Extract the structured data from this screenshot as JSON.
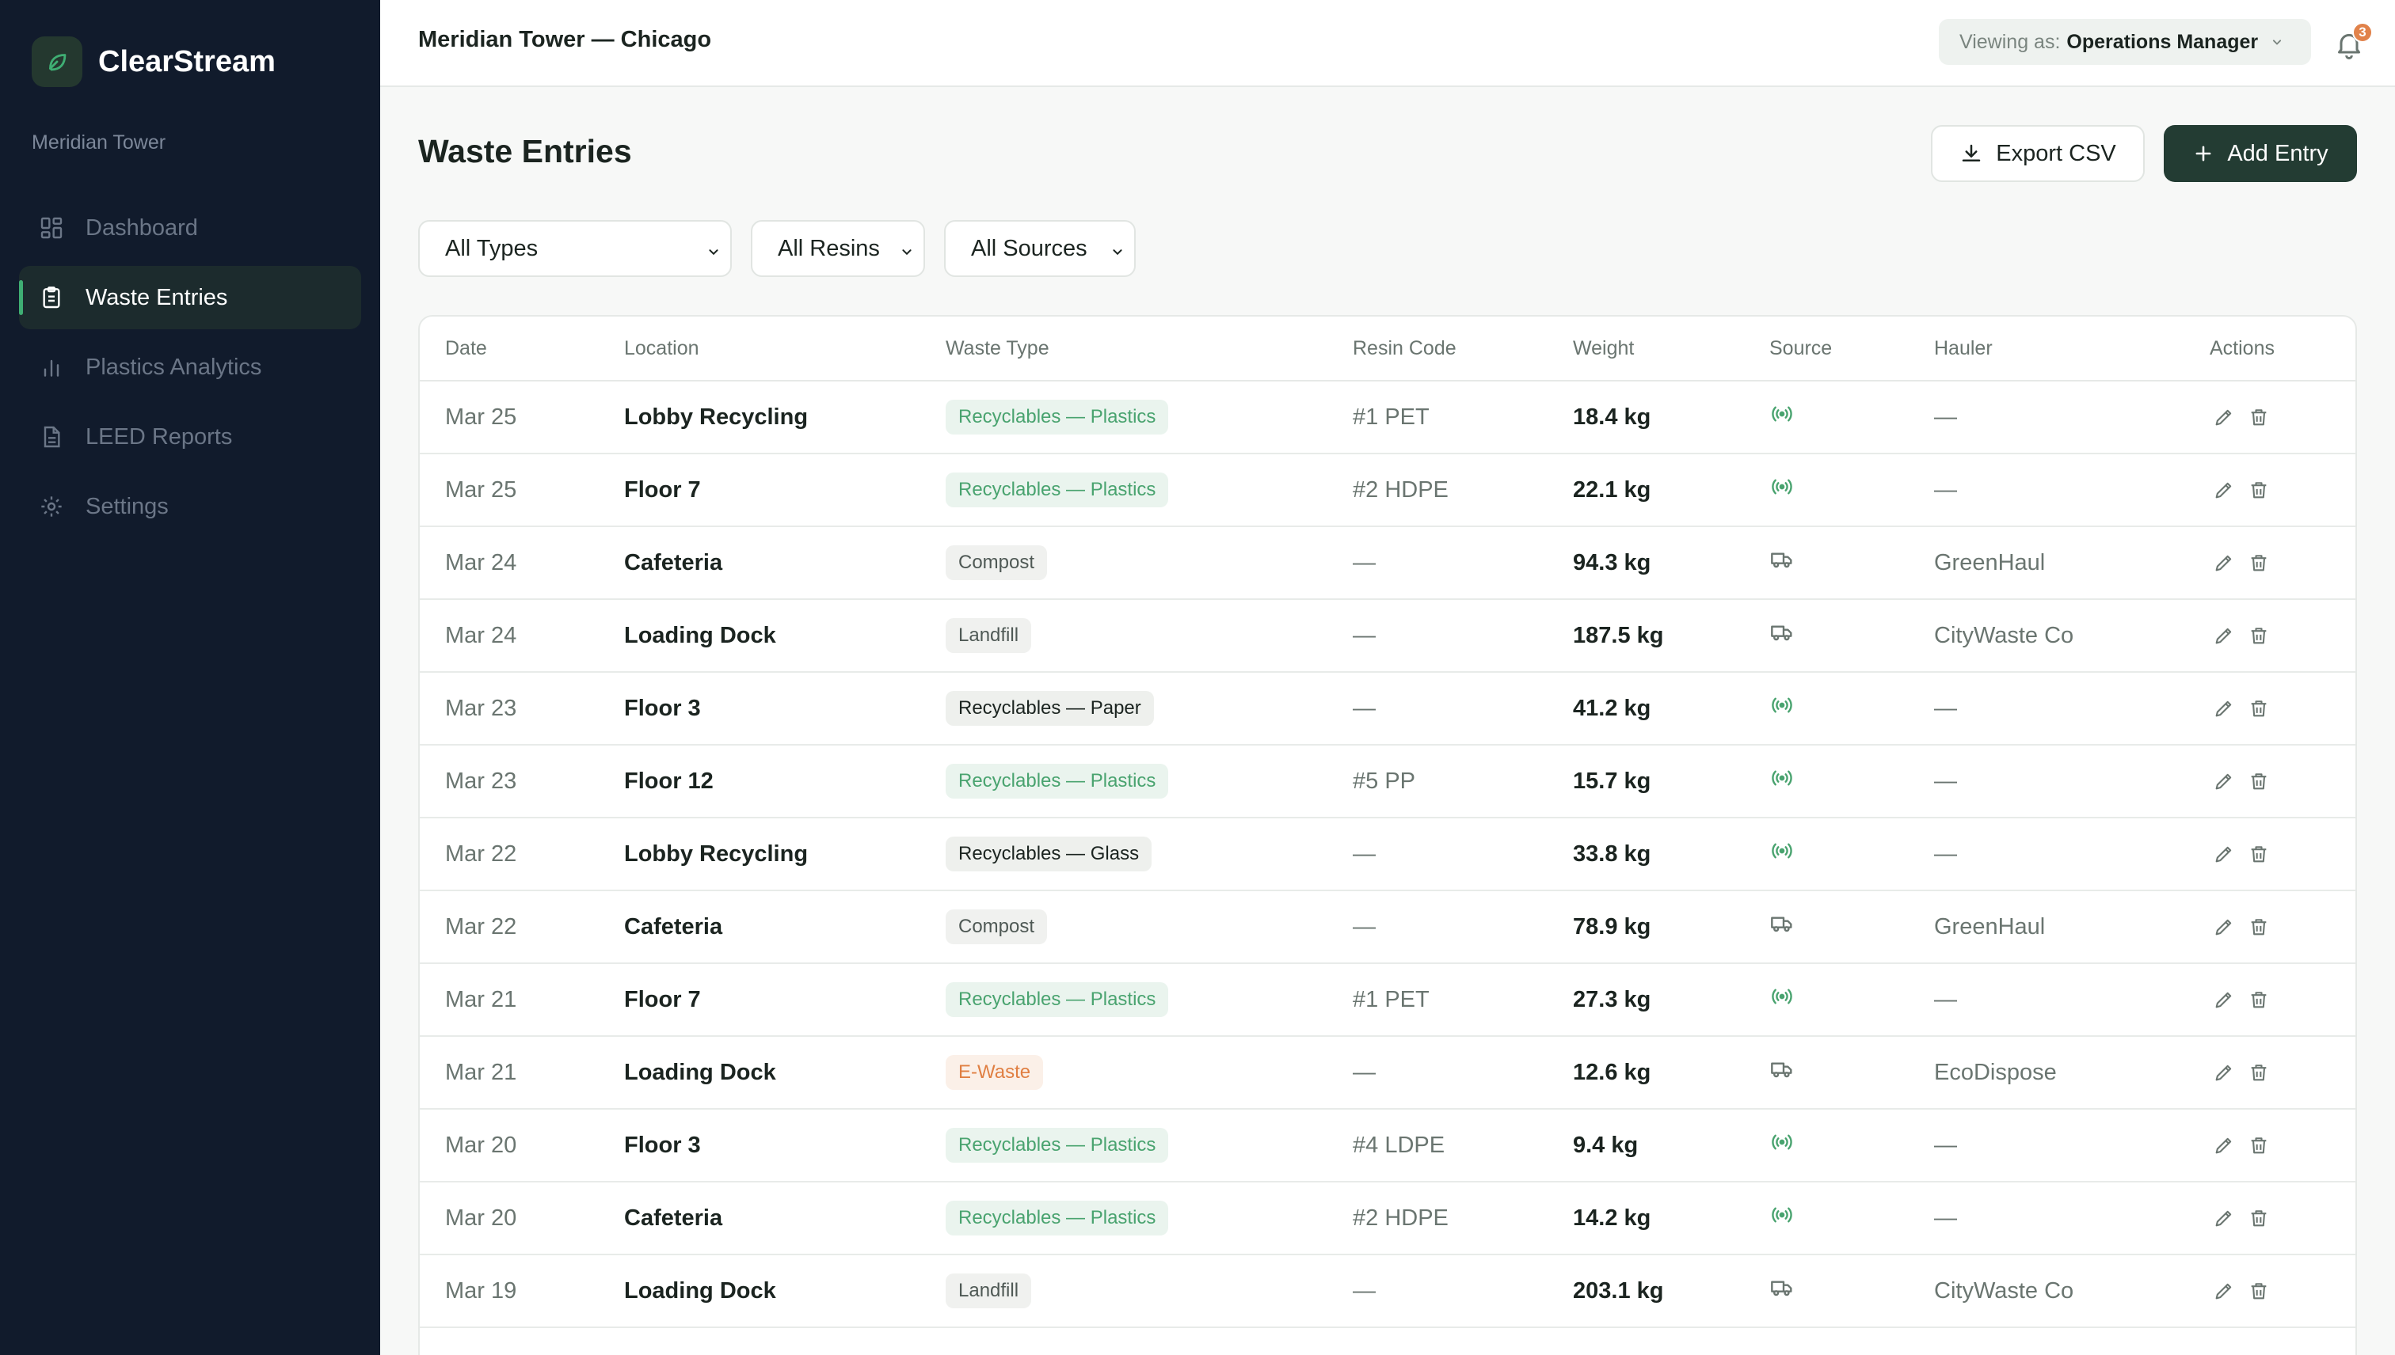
{
  "app": {
    "name": "ClearStream",
    "workspace": "Meridian Tower"
  },
  "sidebar": {
    "items": [
      {
        "label": "Dashboard",
        "icon": "grid-icon",
        "active": false
      },
      {
        "label": "Waste Entries",
        "icon": "clipboard-icon",
        "active": true
      },
      {
        "label": "Plastics Analytics",
        "icon": "bar-chart-icon",
        "active": false
      },
      {
        "label": "LEED Reports",
        "icon": "document-icon",
        "active": false
      },
      {
        "label": "Settings",
        "icon": "gear-icon",
        "active": false
      }
    ]
  },
  "topbar": {
    "title": "Meridian Tower — Chicago",
    "viewing_label": "Viewing as:",
    "viewing_value": "Operations Manager",
    "notification_count": "3"
  },
  "main": {
    "title": "Waste Entries",
    "export_label": "Export CSV",
    "add_label": "Add Entry",
    "filters": {
      "type": "All Types",
      "resin": "All Resins",
      "source": "All Sources"
    }
  },
  "table": {
    "columns": [
      "Date",
      "Location",
      "Waste Type",
      "Resin Code",
      "Weight",
      "Source",
      "Hauler",
      "Actions"
    ],
    "rows": [
      {
        "date": "Mar 25",
        "location": "Lobby Recycling",
        "type": "Recyclables — Plastics",
        "type_style": "plastics",
        "resin": "#1 PET",
        "weight": "18.4 kg",
        "source": "sensor",
        "hauler": "—"
      },
      {
        "date": "Mar 25",
        "location": "Floor 7",
        "type": "Recyclables — Plastics",
        "type_style": "plastics",
        "resin": "#2 HDPE",
        "weight": "22.1 kg",
        "source": "sensor",
        "hauler": "—"
      },
      {
        "date": "Mar 24",
        "location": "Cafeteria",
        "type": "Compost",
        "type_style": "compost",
        "resin": "—",
        "weight": "94.3 kg",
        "source": "truck",
        "hauler": "GreenHaul"
      },
      {
        "date": "Mar 24",
        "location": "Loading Dock",
        "type": "Landfill",
        "type_style": "landfill",
        "resin": "—",
        "weight": "187.5 kg",
        "source": "truck",
        "hauler": "CityWaste Co"
      },
      {
        "date": "Mar 23",
        "location": "Floor 3",
        "type": "Recyclables — Paper",
        "type_style": "paper",
        "resin": "—",
        "weight": "41.2 kg",
        "source": "sensor",
        "hauler": "—"
      },
      {
        "date": "Mar 23",
        "location": "Floor 12",
        "type": "Recyclables — Plastics",
        "type_style": "plastics",
        "resin": "#5 PP",
        "weight": "15.7 kg",
        "source": "sensor",
        "hauler": "—"
      },
      {
        "date": "Mar 22",
        "location": "Lobby Recycling",
        "type": "Recyclables — Glass",
        "type_style": "glass",
        "resin": "—",
        "weight": "33.8 kg",
        "source": "sensor",
        "hauler": "—"
      },
      {
        "date": "Mar 22",
        "location": "Cafeteria",
        "type": "Compost",
        "type_style": "compost",
        "resin": "—",
        "weight": "78.9 kg",
        "source": "truck",
        "hauler": "GreenHaul"
      },
      {
        "date": "Mar 21",
        "location": "Floor 7",
        "type": "Recyclables — Plastics",
        "type_style": "plastics",
        "resin": "#1 PET",
        "weight": "27.3 kg",
        "source": "sensor",
        "hauler": "—"
      },
      {
        "date": "Mar 21",
        "location": "Loading Dock",
        "type": "E-Waste",
        "type_style": "ewaste",
        "resin": "—",
        "weight": "12.6 kg",
        "source": "truck",
        "hauler": "EcoDispose"
      },
      {
        "date": "Mar 20",
        "location": "Floor 3",
        "type": "Recyclables — Plastics",
        "type_style": "plastics",
        "resin": "#4 LDPE",
        "weight": "9.4 kg",
        "source": "sensor",
        "hauler": "—"
      },
      {
        "date": "Mar 20",
        "location": "Cafeteria",
        "type": "Recyclables — Plastics",
        "type_style": "plastics",
        "resin": "#2 HDPE",
        "weight": "14.2 kg",
        "source": "sensor",
        "hauler": "—"
      },
      {
        "date": "Mar 19",
        "location": "Loading Dock",
        "type": "Landfill",
        "type_style": "landfill",
        "resin": "—",
        "weight": "203.1 kg",
        "source": "truck",
        "hauler": "CityWaste Co"
      }
    ]
  },
  "colors": {
    "sidebar": "#111b2c",
    "accent": "#3fae73",
    "primary_button": "#233c33",
    "badge": "#e1824a"
  }
}
